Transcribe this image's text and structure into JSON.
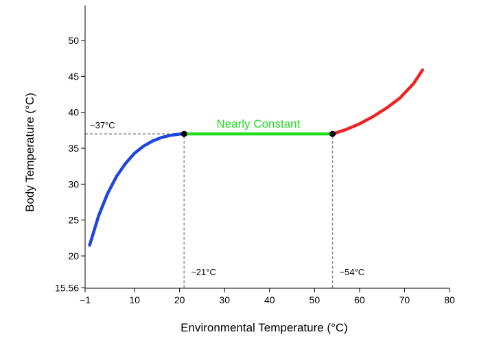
{
  "chart_data": {
    "type": "line",
    "xlabel": "Environmental Temperature (°C)",
    "ylabel": "Body Temperature (°C)",
    "xlim": [
      -1,
      80
    ],
    "ylim": [
      15.56,
      55
    ],
    "xticks": [
      -1,
      10,
      20,
      30,
      40,
      50,
      60,
      70,
      80
    ],
    "xtick_labels": [
      "−1",
      "10",
      "20",
      "30",
      "40",
      "50",
      "60",
      "70",
      "80"
    ],
    "yticks": [
      15.56,
      20,
      25,
      30,
      35,
      40,
      45,
      50
    ],
    "ytick_labels": [
      "15.56",
      "20",
      "25",
      "30",
      "35",
      "40",
      "45",
      "50"
    ],
    "grid": false,
    "series": [
      {
        "color": "#1f45e0",
        "x": [
          0,
          2,
          4,
          6,
          8,
          10,
          12,
          14,
          16,
          18,
          20,
          21
        ],
        "y": [
          21.5,
          25.6,
          28.7,
          31.1,
          32.9,
          34.3,
          35.3,
          36.0,
          36.5,
          36.8,
          36.97,
          37
        ]
      },
      {
        "color": "#22dd22",
        "x": [
          21,
          54
        ],
        "y": [
          37,
          37
        ]
      },
      {
        "color": "#ee2222",
        "x": [
          54,
          57,
          60,
          63,
          66,
          69,
          72,
          74
        ],
        "y": [
          37,
          37.6,
          38.4,
          39.4,
          40.6,
          42.0,
          44.0,
          45.9
        ]
      }
    ],
    "points": [
      {
        "x": 21,
        "y": 37
      },
      {
        "x": 54,
        "y": 37
      }
    ],
    "reference_lines": [
      {
        "orientation": "horizontal",
        "y": 37,
        "x_from": -1,
        "x_to": 21,
        "label": "~37°C"
      },
      {
        "orientation": "vertical",
        "x": 21,
        "y_from": 15.56,
        "y_to": 37,
        "label": "~21°C"
      },
      {
        "orientation": "vertical",
        "x": 54,
        "y_from": 15.56,
        "y_to": 37,
        "label": "~54°C"
      }
    ],
    "region_label": {
      "text": "Nearly Constant",
      "color": "#22dd22"
    }
  }
}
